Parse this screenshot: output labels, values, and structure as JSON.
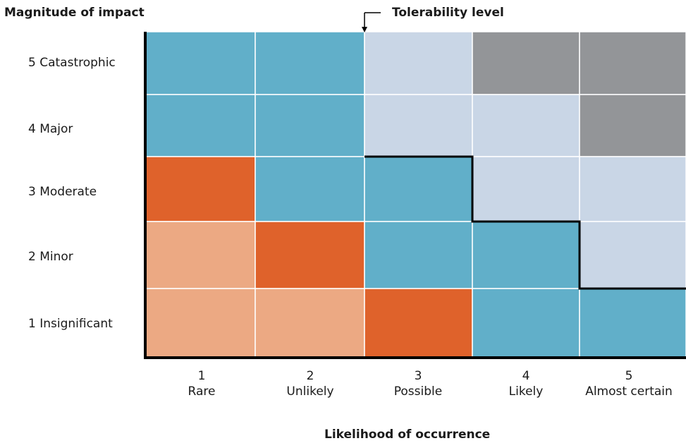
{
  "y_axis_title": "Magnitude of impact",
  "x_axis_title": "Likelihood of occurrence",
  "tolerability_label": "Tolerability level",
  "rows": [
    {
      "label": "5 Catastrophic"
    },
    {
      "label": "4 Major"
    },
    {
      "label": "3 Moderate"
    },
    {
      "label": "2 Minor"
    },
    {
      "label": "1 Insignificant"
    }
  ],
  "columns": [
    {
      "number": "1",
      "name": "Rare"
    },
    {
      "number": "2",
      "name": "Unlikely"
    },
    {
      "number": "3",
      "name": "Possible"
    },
    {
      "number": "4",
      "name": "Likely"
    },
    {
      "number": "5",
      "name": "Almost certain"
    }
  ],
  "colors": {
    "light_orange": "#eca983",
    "dark_orange": "#df622b",
    "blue": "#61afc9",
    "light_blue": "#c9d6e6",
    "gray": "#939598"
  },
  "cells": [
    [
      "blue",
      "blue",
      "light_blue",
      "gray",
      "gray"
    ],
    [
      "blue",
      "blue",
      "light_blue",
      "light_blue",
      "gray"
    ],
    [
      "dark_orange",
      "blue",
      "blue",
      "light_blue",
      "light_blue"
    ],
    [
      "light_orange",
      "dark_orange",
      "blue",
      "blue",
      "light_blue"
    ],
    [
      "light_orange",
      "light_orange",
      "dark_orange",
      "blue",
      "blue"
    ]
  ],
  "tolerability_boundary_rows_above": [
    0,
    0,
    2,
    3,
    4
  ]
}
